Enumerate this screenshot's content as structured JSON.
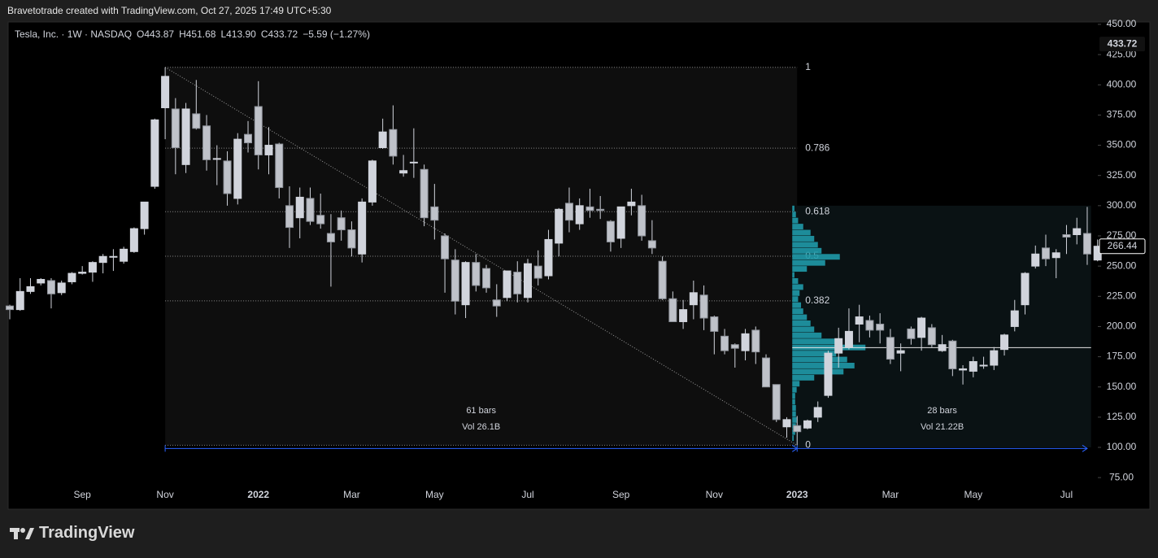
{
  "header": {
    "credit": "Bravetotrade created with TradingView.com, Oct 27, 2025 17:49 UTC+5:30",
    "symbol": "Tesla, Inc. · 1W · NASDAQ",
    "quote": [
      "O443.87",
      "H451.68",
      "L413.90",
      "C433.72",
      "−5.59 (−1.27%)"
    ]
  },
  "footer": {
    "logo": "TradingView"
  },
  "chart_data": {
    "type": "candlestick",
    "color": "#d1d4dc",
    "categories": [
      null,
      null,
      null,
      null,
      null,
      null,
      null,
      "Sep",
      null,
      null,
      null,
      null,
      null,
      null,
      null,
      "Nov",
      null,
      null,
      null,
      null,
      null,
      null,
      null,
      null,
      "2022",
      null,
      null,
      null,
      null,
      null,
      null,
      null,
      null,
      "Mar",
      null,
      null,
      null,
      null,
      null,
      null,
      null,
      "May",
      null,
      null,
      null,
      null,
      null,
      null,
      null,
      null,
      "Jul",
      null,
      null,
      null,
      null,
      null,
      null,
      null,
      null,
      "Sep",
      null,
      null,
      null,
      null,
      null,
      null,
      null,
      null,
      "Nov",
      null,
      null,
      null,
      null,
      null,
      null,
      null,
      "2023",
      null,
      null,
      null,
      null,
      null,
      null,
      null,
      null,
      "Mar",
      null,
      null,
      null,
      null,
      null,
      null,
      null,
      "May",
      null,
      null,
      null,
      null,
      null,
      null,
      null,
      null,
      "Jul",
      null,
      null,
      null
    ],
    "open": [
      217,
      214,
      229,
      236,
      238,
      228,
      237,
      244,
      245,
      253,
      258,
      254,
      262,
      281,
      316,
      381,
      380,
      334,
      376,
      366,
      339,
      337,
      306,
      359,
      382,
      342,
      351,
      300,
      290,
      306,
      292,
      277,
      290,
      280,
      260,
      303,
      348,
      363,
      327,
      336,
      330,
      299,
      275,
      255,
      218,
      253,
      248,
      222,
      224,
      245,
      224,
      250,
      242,
      269,
      302,
      285,
      299,
      297,
      287,
      273,
      300,
      300,
      271,
      254,
      223,
      204,
      218,
      226,
      208,
      192,
      185,
      180,
      197,
      174,
      152,
      117,
      118,
      116,
      125,
      143,
      178,
      183,
      202,
      205,
      202,
      191,
      178,
      198,
      191,
      199,
      180,
      188,
      164,
      163,
      168,
      168,
      181,
      200,
      218,
      250,
      265,
      257,
      276,
      276,
      277,
      255
    ],
    "high": [
      218,
      240,
      240,
      240,
      240,
      238,
      245,
      250,
      254,
      260,
      264,
      266,
      282,
      303,
      372,
      414.5,
      389,
      385,
      404,
      375,
      350,
      345,
      360,
      370,
      403,
      365,
      352,
      316,
      315,
      315,
      310,
      293,
      296,
      287,
      306,
      338,
      372,
      383,
      342,
      364,
      334,
      318,
      277,
      264,
      254,
      260,
      251,
      235,
      246,
      254,
      256,
      263,
      280,
      298,
      315,
      306,
      314,
      308,
      288,
      299,
      314,
      309,
      288,
      258,
      229,
      222,
      238,
      234,
      209,
      198,
      186,
      198,
      200,
      177,
      152,
      125,
      126,
      123,
      138,
      180,
      199,
      215,
      218,
      209,
      211,
      198,
      186,
      200,
      208,
      202,
      193,
      189,
      168,
      175,
      175,
      183,
      194,
      222,
      245,
      267,
      276,
      264,
      284,
      290,
      299,
      272
    ],
    "low": [
      206,
      213,
      227,
      234,
      215,
      226,
      235,
      243,
      237,
      244,
      246,
      252,
      261,
      276,
      314,
      355,
      326,
      327,
      363,
      329,
      317,
      300,
      301,
      344,
      330,
      326,
      306,
      265,
      273,
      284,
      281,
      233,
      271,
      258,
      253,
      300,
      347,
      334,
      324,
      323,
      283,
      272,
      228,
      210,
      207,
      229,
      228,
      208,
      221,
      220,
      220,
      234,
      239,
      258,
      278,
      280,
      290,
      289,
      262,
      265,
      292,
      271,
      260,
      222,
      204,
      198,
      206,
      197,
      177,
      177,
      166,
      172,
      169,
      150,
      121,
      108,
      101.81,
      115,
      121,
      141,
      166,
      181,
      187,
      191,
      186,
      169,
      163,
      185,
      180,
      183,
      179,
      159,
      152,
      158,
      165,
      164,
      176,
      196,
      210,
      248,
      250,
      240,
      260,
      268,
      251,
      254
    ],
    "close": [
      214,
      229,
      233,
      239,
      227,
      236,
      244,
      245,
      253,
      258,
      258,
      264,
      281,
      303,
      371,
      407,
      348,
      380,
      364,
      338,
      339,
      310,
      355,
      352,
      342,
      350,
      315,
      282,
      307,
      287,
      285,
      270,
      280,
      265,
      303,
      337,
      361,
      341,
      329,
      336,
      290,
      288,
      256,
      221,
      253,
      234,
      232,
      217,
      246,
      227,
      252,
      240,
      272,
      297,
      288,
      300,
      296,
      296,
      270,
      299,
      303,
      275,
      265,
      223,
      204,
      214,
      228,
      207,
      196,
      180,
      182,
      194,
      179,
      150,
      123,
      123,
      113,
      122,
      133,
      178,
      190,
      196,
      208,
      197,
      197,
      173,
      180,
      190,
      207,
      185,
      185,
      165,
      165,
      171,
      168,
      180,
      193,
      213,
      244,
      260,
      256,
      261,
      274,
      281,
      260,
      266.44
    ],
    "ylim": [
      67.7,
      452
    ],
    "yticks": [
      {
        "value": 75,
        "label": "75.00"
      },
      {
        "value": 100,
        "label": "100.00"
      },
      {
        "value": 125,
        "label": "125.00"
      },
      {
        "value": 150,
        "label": "150.00"
      },
      {
        "value": 175,
        "label": "175.00"
      },
      {
        "value": 200,
        "label": "200.00"
      },
      {
        "value": 225,
        "label": "225.00"
      },
      {
        "value": 250,
        "label": "250.00"
      },
      {
        "value": 275,
        "label": "275.00"
      },
      {
        "value": 300,
        "label": "300.00"
      },
      {
        "value": 325,
        "label": "325.00"
      },
      {
        "value": 350,
        "label": "350.00"
      },
      {
        "value": 375,
        "label": "375.00"
      },
      {
        "value": 400,
        "label": "400.00"
      },
      {
        "value": 425,
        "label": "425.00"
      },
      {
        "value": 450,
        "label": "450.00"
      }
    ],
    "current_price": 433.72,
    "fib_levels": [
      1,
      0.786,
      0.618,
      0.5,
      0.382,
      0
    ],
    "ranges": [
      {
        "bars": "61 bars",
        "volume": "Vol 26.1B"
      },
      {
        "bars": "28 bars",
        "volume": "Vol 21.22B"
      }
    ],
    "volume_profile": {
      "color": "#1f9aa9",
      "bins": [
        100,
        105,
        110,
        115,
        120,
        125,
        130,
        135,
        140,
        145,
        150,
        155,
        160,
        165,
        170,
        175,
        180,
        185,
        190,
        195,
        200,
        205,
        210,
        215,
        220,
        225,
        230,
        235,
        240,
        245,
        250,
        255,
        260,
        265,
        270,
        275,
        280,
        285,
        290,
        295,
        300
      ],
      "values": [
        0,
        2,
        4,
        5,
        6,
        5,
        5,
        4,
        4,
        6,
        10,
        30,
        70,
        85,
        75,
        60,
        100,
        65,
        40,
        30,
        25,
        20,
        15,
        12,
        8,
        10,
        15,
        8,
        3,
        20,
        45,
        65,
        40,
        35,
        30,
        25,
        15,
        8,
        5,
        3
      ]
    }
  }
}
